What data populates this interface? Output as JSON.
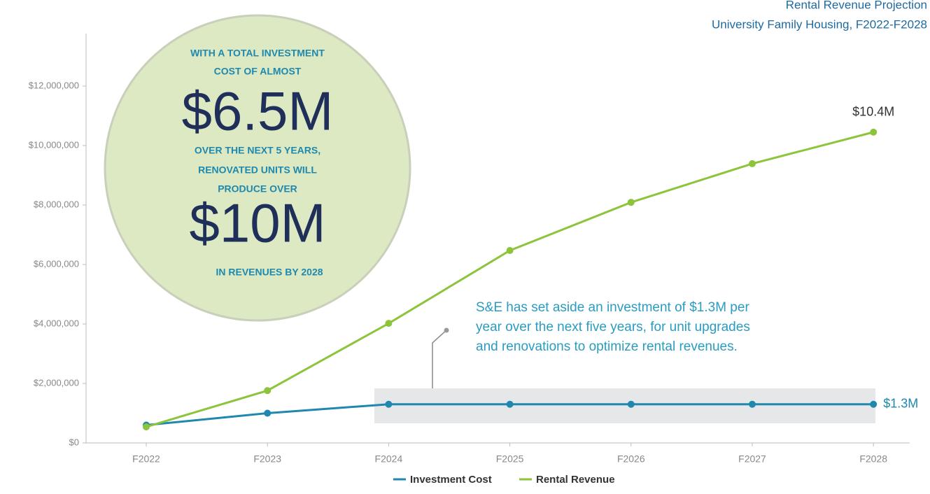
{
  "chart_data": {
    "type": "line",
    "title": "Rental Revenue Projection",
    "subtitle": "University Family Housing, F2022-F2028",
    "categories": [
      "F2022",
      "F2023",
      "F2024",
      "F2025",
      "F2026",
      "F2027",
      "F2028"
    ],
    "series": [
      {
        "name": "Investment Cost",
        "color": "#1e88ae",
        "values": [
          600000,
          1000000,
          1300000,
          1300000,
          1300000,
          1300000,
          1300000
        ],
        "value_labels": [
          null,
          null,
          null,
          null,
          null,
          null,
          "$1.3M"
        ]
      },
      {
        "name": "Rental Revenue",
        "color": "#8cc43c",
        "values": [
          540000,
          1760000,
          4020000,
          6470000,
          8090000,
          9390000,
          10450000
        ],
        "value_labels": [
          null,
          null,
          null,
          null,
          null,
          null,
          "$10.4M"
        ]
      }
    ],
    "ylim": [
      0,
      14000000
    ],
    "yticks": [
      {
        "value": 0,
        "label": "$0"
      },
      {
        "value": 2000000,
        "label": "$2,000,000"
      },
      {
        "value": 4000000,
        "label": "$4,000,000"
      },
      {
        "value": 6000000,
        "label": "$6,000,000"
      },
      {
        "value": 8000000,
        "label": "$8,000,000"
      },
      {
        "value": 10000000,
        "label": "$10,000,000"
      },
      {
        "value": 12000000,
        "label": "$12,000,000"
      }
    ],
    "grid": false,
    "legend": "bottom",
    "circle_text": [
      "WITH A TOTAL INVESTMENT",
      "COST OF ALMOST",
      "$6.5M",
      "OVER THE NEXT 5 YEARS,",
      "RENOVATED UNITS WILL",
      "PRODUCE OVER",
      "$10M",
      "IN REVENUES BY 2028"
    ],
    "callout": [
      "S&E has set aside an investment of $1.3M per",
      "year over the next five years, for unit upgrades",
      "and renovations to optimize rental revenues."
    ]
  }
}
